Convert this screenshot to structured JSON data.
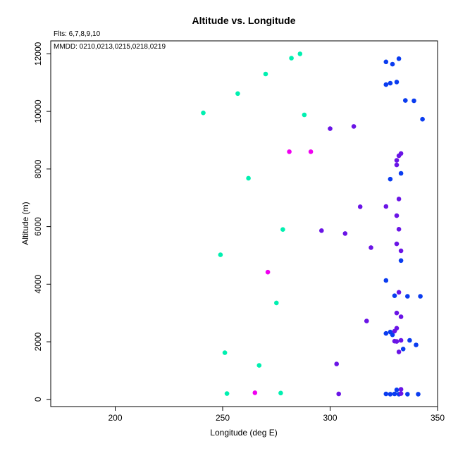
{
  "chart_data": {
    "type": "scatter",
    "title": "Altitude vs. Longitude",
    "xlabel": "Longitude (deg E)",
    "ylabel": "Altitude (m)",
    "xlim": [
      170,
      350
    ],
    "ylim": [
      -250,
      12450
    ],
    "xticks": [
      200,
      250,
      300,
      350
    ],
    "yticks": [
      0,
      2000,
      4000,
      6000,
      8000,
      10000,
      12000
    ],
    "grid": false,
    "annotations": [
      "Flts: 6,7,8,9,10",
      "MMDD: 0210,0213,0215,0218,0219"
    ],
    "colors": {
      "cyan_green": "#00f0b0",
      "blue": "#0a3cf0",
      "violet": "#6a14e6",
      "magenta": "#f000f0"
    },
    "series": [
      {
        "color": "#00f0b0",
        "points": [
          [
            286,
            12000
          ],
          [
            282,
            11850
          ],
          [
            270,
            11300
          ],
          [
            257,
            10620
          ],
          [
            241,
            9950
          ],
          [
            288,
            9880
          ],
          [
            262,
            7680
          ],
          [
            278,
            5900
          ],
          [
            249,
            5020
          ],
          [
            275,
            3350
          ],
          [
            251,
            1620
          ],
          [
            267,
            1180
          ],
          [
            252,
            200
          ],
          [
            277,
            220
          ]
        ]
      },
      {
        "color": "#0a3cf0",
        "points": [
          [
            332,
            11830
          ],
          [
            326,
            11720
          ],
          [
            329,
            11640
          ],
          [
            331,
            11020
          ],
          [
            328,
            10980
          ],
          [
            326,
            10930
          ],
          [
            335,
            10380
          ],
          [
            339,
            10370
          ],
          [
            343,
            9730
          ],
          [
            333,
            7850
          ],
          [
            328,
            7650
          ],
          [
            333,
            4820
          ],
          [
            326,
            4130
          ],
          [
            330,
            3600
          ],
          [
            336,
            3580
          ],
          [
            342,
            3580
          ],
          [
            328,
            2340
          ],
          [
            326,
            2290
          ],
          [
            329,
            2240
          ],
          [
            337,
            2050
          ],
          [
            340,
            1890
          ],
          [
            334,
            1750
          ],
          [
            331,
            330
          ],
          [
            326,
            190
          ],
          [
            328,
            180
          ],
          [
            330,
            190
          ],
          [
            332,
            180
          ],
          [
            336,
            180
          ],
          [
            341,
            180
          ]
        ]
      },
      {
        "color": "#6a14e6",
        "points": [
          [
            300,
            9400
          ],
          [
            311,
            9480
          ],
          [
            333,
            8540
          ],
          [
            332,
            8460
          ],
          [
            331,
            8300
          ],
          [
            331,
            8140
          ],
          [
            332,
            6960
          ],
          [
            314,
            6690
          ],
          [
            326,
            6700
          ],
          [
            331,
            6380
          ],
          [
            332,
            5910
          ],
          [
            296,
            5860
          ],
          [
            307,
            5760
          ],
          [
            319,
            5270
          ],
          [
            331,
            5400
          ],
          [
            333,
            5160
          ],
          [
            332,
            3720
          ],
          [
            331,
            3000
          ],
          [
            333,
            2870
          ],
          [
            317,
            2720
          ],
          [
            331,
            2470
          ],
          [
            330,
            2370
          ],
          [
            333,
            2050
          ],
          [
            330,
            2020
          ],
          [
            331,
            2010
          ],
          [
            332,
            1650
          ],
          [
            303,
            1230
          ],
          [
            333,
            350
          ],
          [
            304,
            190
          ],
          [
            333,
            200
          ]
        ]
      },
      {
        "color": "#f000f0",
        "points": [
          [
            281,
            8600
          ],
          [
            291,
            8600
          ],
          [
            271,
            4420
          ],
          [
            265,
            230
          ]
        ]
      }
    ]
  }
}
